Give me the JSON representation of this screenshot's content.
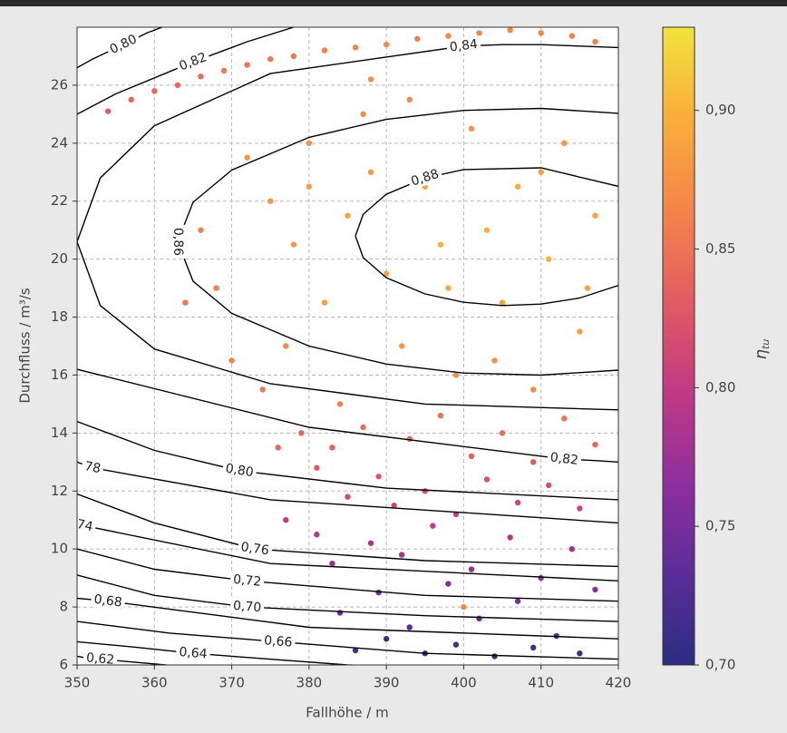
{
  "chart_data": {
    "type": "scatter",
    "xlabel": "Fallhöhe / m",
    "ylabel": "Durchfluss / m³/s",
    "xlim": [
      350,
      420
    ],
    "ylim": [
      6,
      28
    ],
    "xticks": [
      350,
      360,
      370,
      380,
      390,
      400,
      410,
      420
    ],
    "yticks": [
      6,
      8,
      10,
      12,
      14,
      16,
      18,
      20,
      22,
      24,
      26
    ],
    "grid": true,
    "x": [
      354,
      357,
      360,
      363,
      366,
      369,
      372,
      375,
      378,
      382,
      386,
      390,
      394,
      398,
      402,
      406,
      410,
      414,
      417,
      388,
      372,
      375,
      378,
      380,
      382,
      385,
      388,
      390,
      392,
      395,
      397,
      399,
      401,
      403,
      405,
      407,
      409,
      411,
      413,
      415,
      417,
      368,
      366,
      364,
      370,
      374,
      377,
      384,
      387,
      393,
      398,
      404,
      410,
      416,
      380,
      379,
      381,
      383,
      385,
      387,
      389,
      391,
      393,
      395,
      397,
      399,
      401,
      403,
      405,
      407,
      409,
      411,
      413,
      415,
      417,
      377,
      376,
      381,
      383,
      384,
      386,
      388,
      389,
      390,
      392,
      393,
      395,
      396,
      398,
      399,
      401,
      402,
      404,
      406,
      407,
      409,
      410,
      412,
      414,
      415,
      417,
      400
    ],
    "y": [
      25.1,
      25.5,
      25.8,
      26.0,
      26.3,
      26.5,
      26.7,
      26.9,
      27.0,
      27.2,
      27.3,
      27.4,
      27.6,
      27.7,
      27.8,
      27.9,
      27.8,
      27.7,
      27.5,
      26.2,
      23.5,
      22.0,
      20.5,
      24.0,
      18.5,
      21.5,
      23.0,
      19.5,
      17.0,
      22.5,
      20.5,
      16.0,
      24.5,
      21.0,
      18.5,
      22.5,
      15.5,
      20.0,
      24.0,
      17.5,
      21.5,
      19.0,
      21.0,
      18.5,
      16.5,
      15.5,
      17.0,
      15.0,
      25.0,
      25.5,
      19.0,
      16.5,
      23.0,
      19.0,
      22.5,
      14.0,
      12.8,
      13.5,
      11.8,
      14.2,
      12.5,
      11.5,
      13.8,
      12.0,
      14.6,
      11.2,
      13.2,
      12.4,
      14.0,
      11.6,
      13.0,
      12.2,
      14.5,
      11.4,
      13.6,
      11.0,
      13.5,
      10.5,
      9.5,
      7.8,
      6.5,
      10.2,
      8.5,
      6.9,
      9.8,
      7.3,
      6.4,
      10.8,
      8.8,
      6.7,
      9.3,
      7.6,
      6.3,
      10.4,
      8.2,
      6.6,
      9.0,
      7.0,
      10.0,
      6.4,
      8.6,
      8.0
    ],
    "c": [
      0.83,
      0.84,
      0.84,
      0.84,
      0.845,
      0.85,
      0.85,
      0.855,
      0.855,
      0.86,
      0.86,
      0.865,
      0.86,
      0.865,
      0.865,
      0.87,
      0.865,
      0.86,
      0.86,
      0.87,
      0.875,
      0.88,
      0.88,
      0.875,
      0.885,
      0.89,
      0.88,
      0.89,
      0.88,
      0.89,
      0.9,
      0.875,
      0.875,
      0.9,
      0.89,
      0.895,
      0.87,
      0.9,
      0.88,
      0.885,
      0.89,
      0.86,
      0.86,
      0.855,
      0.86,
      0.855,
      0.87,
      0.86,
      0.87,
      0.865,
      0.895,
      0.875,
      0.885,
      0.89,
      0.885,
      0.84,
      0.83,
      0.835,
      0.815,
      0.845,
      0.825,
      0.81,
      0.84,
      0.82,
      0.85,
      0.805,
      0.835,
      0.82,
      0.845,
      0.81,
      0.83,
      0.82,
      0.85,
      0.81,
      0.84,
      0.8,
      0.84,
      0.79,
      0.77,
      0.74,
      0.72,
      0.785,
      0.75,
      0.71,
      0.78,
      0.73,
      0.71,
      0.8,
      0.76,
      0.72,
      0.77,
      0.74,
      0.705,
      0.79,
      0.75,
      0.715,
      0.765,
      0.73,
      0.78,
      0.71,
      0.76,
      0.87
    ],
    "colormap": [
      "#2c2d82",
      "#5a2d98",
      "#8f2f9e",
      "#c03a84",
      "#e25c62",
      "#f3854a",
      "#f9ad3a",
      "#f2e33c"
    ],
    "clim": [
      0.7,
      0.93
    ],
    "cticks": [
      {
        "value": 0.7,
        "label": "0,70"
      },
      {
        "value": 0.75,
        "label": "0,75"
      },
      {
        "value": 0.8,
        "label": "0,80"
      },
      {
        "value": 0.85,
        "label": "0,85"
      },
      {
        "value": 0.9,
        "label": "0,90"
      }
    ],
    "colorbar_label": {
      "symbol": "η",
      "subscript": "tu"
    },
    "contours": [
      {
        "label": "0,80",
        "x": [
          350,
          352,
          356,
          359,
          361
        ],
        "y": [
          26.6,
          26.9,
          27.4,
          27.8,
          28.0
        ]
      },
      {
        "label": "0,82",
        "x": [
          350,
          355,
          365,
          372,
          378
        ],
        "y": [
          25.0,
          25.7,
          26.8,
          27.5,
          28.0
        ]
      },
      {
        "label": "0,84",
        "x": [
          350,
          353,
          360,
          375,
          400,
          405,
          410,
          415,
          420
        ],
        "y": [
          20.6,
          22.8,
          24.6,
          26.4,
          27.35,
          27.4,
          27.4,
          27.35,
          27.3
        ]
      },
      {
        "x": [
          350,
          353,
          360,
          375,
          395,
          420
        ],
        "y": [
          20.6,
          18.4,
          16.9,
          15.7,
          15.0,
          14.8
        ]
      },
      {
        "label": "0,86",
        "x": [
          420,
          410,
          400,
          390,
          380,
          370,
          365,
          363,
          365,
          370,
          380,
          390,
          400,
          410,
          420
        ],
        "y": [
          25.03,
          25.2,
          25.13,
          24.82,
          24.2,
          23.07,
          21.96,
          20.6,
          19.24,
          18.13,
          17.0,
          16.38,
          16.07,
          16.0,
          16.17
        ]
      },
      {
        "label": "0,88",
        "x": [
          386,
          387,
          390,
          395,
          400,
          410,
          420
        ],
        "y": [
          20.8,
          21.55,
          22.24,
          22.8,
          23.09,
          23.15,
          22.51
        ]
      },
      {
        "x": [
          386,
          387,
          390,
          395,
          400,
          405,
          410,
          415,
          420
        ],
        "y": [
          20.8,
          20.05,
          19.36,
          18.8,
          18.51,
          18.4,
          18.45,
          18.66,
          19.09
        ]
      },
      {
        "label": "0,82",
        "x": [
          350,
          380,
          413,
          417,
          420
        ],
        "y": [
          16.2,
          14.2,
          13.1,
          13.05,
          13.0
        ]
      },
      {
        "label": "0,80",
        "x": [
          350,
          360,
          371,
          390,
          420
        ],
        "y": [
          14.4,
          13.4,
          12.7,
          12.1,
          11.7
        ]
      },
      {
        "label": "78",
        "x": [
          350,
          351,
          352,
          375,
          420
        ],
        "y": [
          13.0,
          12.9,
          12.8,
          11.7,
          10.9
        ]
      },
      {
        "label": "0,76",
        "x": [
          350,
          360,
          373,
          395,
          420
        ],
        "y": [
          11.9,
          10.9,
          10.0,
          9.6,
          9.4
        ]
      },
      {
        "label": "74",
        "x": [
          350,
          350.5,
          351,
          375,
          420
        ],
        "y": [
          10.9,
          10.85,
          10.8,
          9.5,
          8.9
        ]
      },
      {
        "label": "0,72",
        "x": [
          350,
          360,
          372,
          395,
          420
        ],
        "y": [
          10.0,
          9.3,
          8.9,
          8.4,
          8.2
        ]
      },
      {
        "label": "0,70",
        "x": [
          350,
          360,
          372,
          395,
          420
        ],
        "y": [
          9.1,
          8.4,
          8.0,
          7.7,
          7.5
        ]
      },
      {
        "label": "0,68",
        "x": [
          350,
          352,
          354,
          380,
          420
        ],
        "y": [
          8.3,
          8.25,
          8.2,
          7.3,
          6.9
        ]
      },
      {
        "label": "0,66",
        "x": [
          350,
          362,
          376,
          395,
          420
        ],
        "y": [
          7.5,
          7.1,
          6.8,
          6.4,
          6.2
        ]
      },
      {
        "label": "0,64",
        "x": [
          350,
          358,
          365,
          385,
          420
        ],
        "y": [
          6.8,
          6.6,
          6.4,
          6.0,
          5.7
        ]
      },
      {
        "label": "0,62",
        "x": [
          350,
          351,
          353,
          370,
          400
        ],
        "y": [
          6.3,
          6.25,
          6.2,
          5.8,
          5.5
        ]
      }
    ]
  }
}
